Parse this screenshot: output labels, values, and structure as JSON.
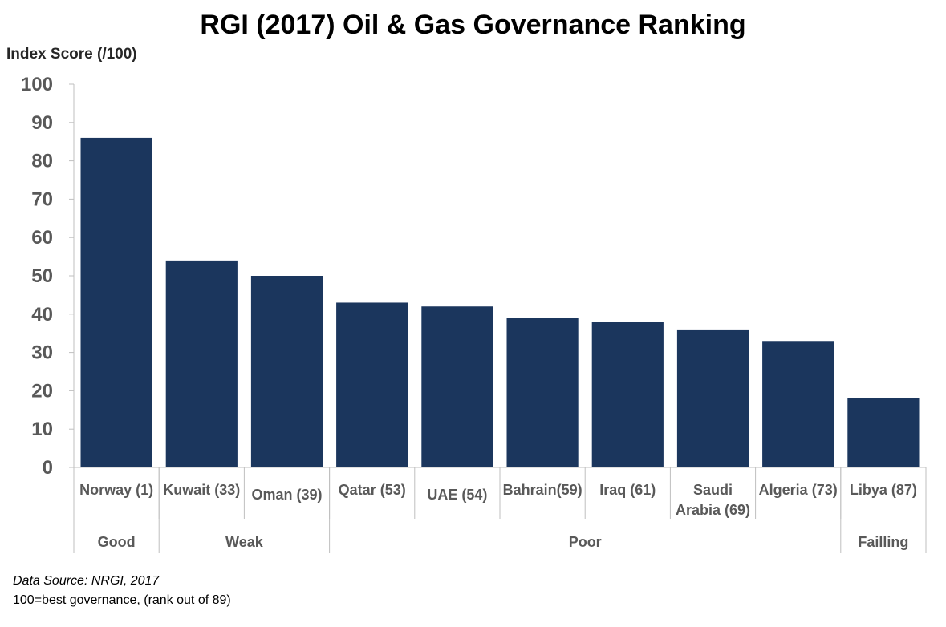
{
  "chart_data": {
    "type": "bar",
    "title": "RGI (2017) Oil & Gas Governance Ranking",
    "ylabel": "Index Score (/100)",
    "xlabel": "",
    "ylim": [
      0,
      100
    ],
    "yticks": [
      0,
      10,
      20,
      30,
      40,
      50,
      60,
      70,
      80,
      90,
      100
    ],
    "grid": false,
    "legend": "none",
    "bar_color": "#1b365d",
    "categories": [
      [
        "Norway (1)"
      ],
      [
        "Kuwait (33)"
      ],
      [
        "Oman (39)"
      ],
      [
        "Qatar (53)"
      ],
      [
        "UAE (54)"
      ],
      [
        "Bahrain(59)"
      ],
      [
        "Iraq (61)"
      ],
      [
        "Saudi",
        "Arabia (69)"
      ],
      [
        "Algeria (73)"
      ],
      [
        "Libya (87)"
      ]
    ],
    "values": [
      86,
      54,
      50,
      43,
      42,
      39,
      38,
      36,
      33,
      18
    ],
    "groups": [
      {
        "label": "Good",
        "count": 1
      },
      {
        "label": "Weak",
        "count": 2
      },
      {
        "label": "Poor",
        "count": 6
      },
      {
        "label": "Failling",
        "count": 1
      }
    ]
  },
  "footnotes": {
    "source": "Data Source: NRGI, 2017",
    "scale": "100=best governance, (rank out of 89)"
  }
}
